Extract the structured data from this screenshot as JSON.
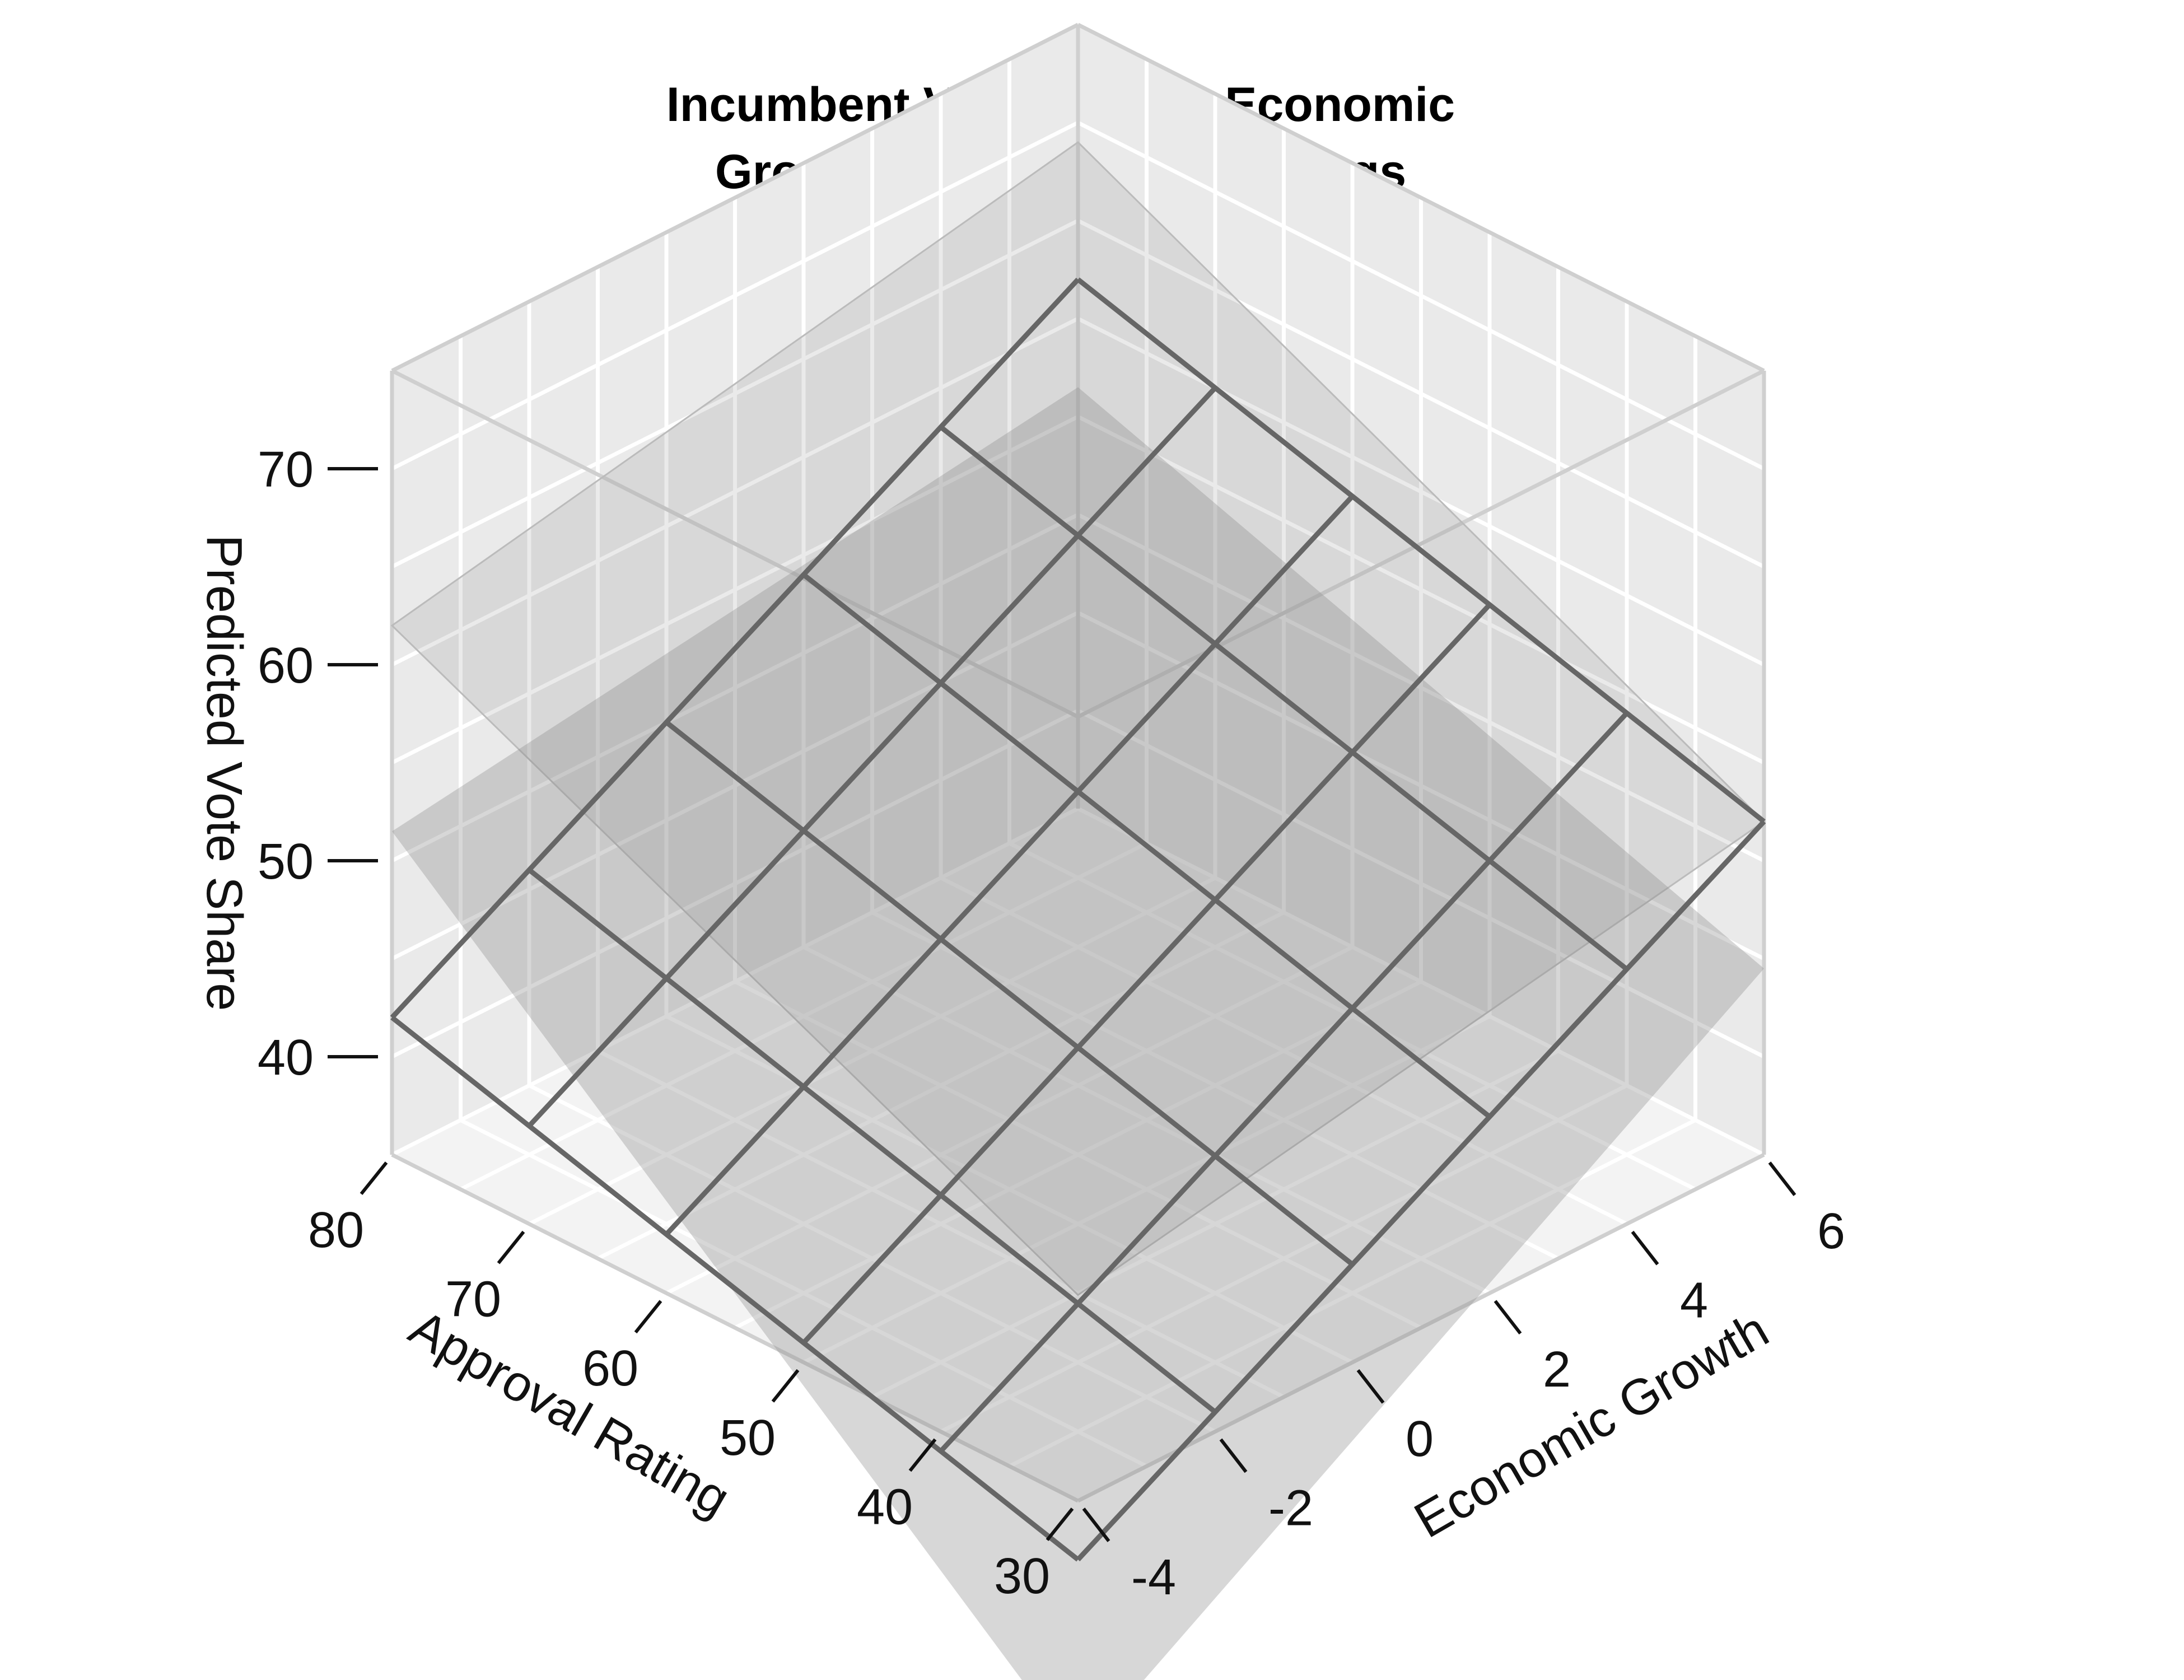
{
  "chart_data": {
    "type": "surface",
    "title": "Incumbent Vote Shares, Economic Growth, and Approval Ratings",
    "title_lines": [
      "Incumbent Vote Shares, Economic",
      "Growth, and Approval Ratings"
    ],
    "xlabel": "Approval Rating",
    "ylabel": "Economic Growth",
    "zlabel": "Predicted Vote Share",
    "x_ticks": [
      30,
      40,
      50,
      60,
      70,
      80
    ],
    "y_ticks": [
      -4,
      -2,
      0,
      2,
      4,
      6
    ],
    "z_ticks": [
      40,
      50,
      60,
      70
    ],
    "xlim": [
      30,
      80
    ],
    "ylim": [
      -4,
      6
    ],
    "zlim": [
      35,
      75
    ],
    "fit_surface": {
      "name": "",
      "approval": [
        30,
        40,
        50,
        60,
        70,
        80
      ],
      "growth": [
        -4,
        -2,
        0,
        2,
        4,
        6
      ],
      "values": [
        [
          32,
          36,
          40,
          44,
          48,
          52
        ],
        [
          34,
          38,
          42,
          46,
          50,
          54
        ],
        [
          36,
          40,
          44,
          48,
          52,
          56
        ],
        [
          38,
          42,
          46,
          50,
          54,
          58
        ],
        [
          40,
          44,
          48,
          52,
          56,
          60
        ],
        [
          42,
          46,
          50,
          54,
          58,
          62
        ]
      ]
    },
    "confidence_band": {
      "upper_corners": {
        "approval_30_growth_-4": 45.5,
        "approval_80_growth_-4": 62,
        "approval_30_growth_6": 52,
        "approval_80_growth_6": 69
      },
      "lower_corners": {
        "approval_30_growth_-4": 22,
        "approval_80_growth_-4": 51.5,
        "approval_30_growth_6": 44.5,
        "approval_80_growth_6": 56.5
      }
    },
    "colors": {
      "panel": "#ebebeb",
      "grid": "#ffffff",
      "box_edge": "#cfcfcf",
      "surface_line": "#666666",
      "band_fill": "#8c8c8c"
    }
  }
}
